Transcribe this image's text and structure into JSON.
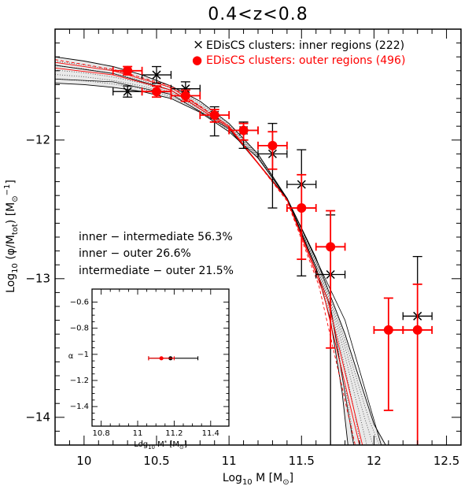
{
  "colors": {
    "inner": "#000000",
    "outer": "#ff0000",
    "band": "#000000"
  },
  "chart_data": [
    {
      "type": "scatter",
      "title": "0.4<z<0.8",
      "xlabel_main": "Log",
      "xlabel_sub": "10",
      "xlabel_rest": " M [M",
      "xlabel_sun": "⊙",
      "xlabel_end": "]",
      "ylabel_main": "Log",
      "ylabel_sub": "10",
      "ylabel_mid": " (φ/M",
      "ylabel_tot": "tot",
      "ylabel_rest": ") [M",
      "ylabel_sun": "⊙",
      "ylabel_sup": "−1",
      "ylabel_end": "]",
      "xlim": [
        9.8,
        12.6
      ],
      "ylim": [
        -14.2,
        -11.2
      ],
      "xticks": [
        10,
        10.5,
        11,
        11.5,
        12,
        12.5
      ],
      "xtick_labels": [
        "10",
        "10.5",
        "11",
        "11.5",
        "12",
        "12.5"
      ],
      "yticks": [
        -12,
        -13,
        -14
      ],
      "ytick_labels": [
        "−12",
        "−13",
        "−14"
      ],
      "legend": [
        {
          "marker": "×",
          "label": "EDisCS clusters: inner regions (222)",
          "color": "#000000"
        },
        {
          "marker": "●",
          "label": "EDisCS clusters: outer regions (496)",
          "color": "#ff0000"
        }
      ],
      "annotations": [
        "inner − intermediate 56.3%",
        "inner − outer 26.6%",
        "intermediate − outer 21.5%"
      ],
      "series": [
        {
          "name": "EDisCS clusters: inner regions (222)",
          "marker": "cross",
          "color": "#000000",
          "x": [
            10.3,
            10.5,
            10.7,
            10.9,
            11.1,
            11.3,
            11.5,
            11.7,
            12.3
          ],
          "y": [
            -11.65,
            -11.53,
            -11.63,
            -11.82,
            -11.93,
            -12.1,
            -12.32,
            -12.97,
            -13.27
          ],
          "xerr": [
            0.1,
            0.1,
            0.1,
            0.1,
            0.1,
            0.1,
            0.1,
            0.1,
            0.1
          ],
          "yerr_up": [
            0.04,
            0.06,
            0.05,
            0.06,
            0.06,
            0.22,
            0.25,
            0.43,
            0.43
          ],
          "yerr_low": [
            0.04,
            0.06,
            0.05,
            0.15,
            0.13,
            0.39,
            0.66,
            1.3,
            1.3
          ]
        },
        {
          "name": "EDisCS clusters: outer regions (496)",
          "marker": "circle",
          "color": "#ff0000",
          "x": [
            10.3,
            10.5,
            10.7,
            10.9,
            11.1,
            11.3,
            11.5,
            11.7,
            12.1,
            12.3
          ],
          "y": [
            -11.5,
            -11.65,
            -11.68,
            -11.82,
            -11.93,
            -12.04,
            -12.49,
            -12.77,
            -13.37,
            -13.37
          ],
          "xerr": [
            0.1,
            0.1,
            0.1,
            0.1,
            0.1,
            0.1,
            0.1,
            0.1,
            0.1,
            0.1
          ],
          "yerr_up": [
            0.03,
            0.04,
            0.04,
            0.04,
            0.05,
            0.1,
            0.24,
            0.26,
            0.23,
            0.33
          ],
          "yerr_low": [
            0.03,
            0.04,
            0.04,
            0.05,
            0.07,
            0.17,
            0.37,
            0.73,
            0.58,
            1.0
          ]
        }
      ],
      "fits": {
        "description": "Schechter function fits with uncertainty band",
        "band_lower": {
          "x": [
            9.8,
            10.0,
            10.2,
            10.4,
            10.6,
            10.8,
            11.0,
            11.2,
            11.4,
            11.6,
            11.8,
            12.0,
            12.08
          ],
          "y": [
            -11.59,
            -11.6,
            -11.62,
            -11.65,
            -11.7,
            -11.8,
            -11.94,
            -12.13,
            -12.42,
            -12.85,
            -13.4,
            -14.05,
            -14.2
          ]
        },
        "band_upper": {
          "x": [
            9.8,
            10.0,
            10.2,
            10.4,
            10.6,
            10.8,
            11.0,
            11.2,
            11.4,
            11.6,
            11.7,
            11.78,
            11.82
          ],
          "y": [
            -11.4,
            -11.43,
            -11.47,
            -11.53,
            -11.61,
            -11.72,
            -11.88,
            -12.1,
            -12.42,
            -12.92,
            -13.3,
            -13.82,
            -14.2
          ]
        },
        "black_lines": [
          {
            "x": [
              9.8,
              10.2,
              10.6,
              11.0,
              11.4,
              11.8,
              12.05
            ],
            "y": [
              -11.46,
              -11.52,
              -11.64,
              -11.91,
              -12.42,
              -13.3,
              -14.2
            ]
          },
          {
            "x": [
              9.8,
              10.2,
              10.6,
              11.0,
              11.4,
              11.7,
              11.86
            ],
            "y": [
              -11.56,
              -11.58,
              -11.67,
              -11.92,
              -12.42,
              -13.2,
              -14.2
            ]
          }
        ],
        "red_lines": [
          {
            "x": [
              9.8,
              10.2,
              10.6,
              11.0,
              11.4,
              11.65,
              11.9
            ],
            "y": [
              -11.44,
              -11.5,
              -11.62,
              -11.9,
              -12.43,
              -13.1,
              -14.2
            ]
          },
          {
            "x": [
              9.8,
              10.2,
              10.6,
              11.0,
              11.4,
              11.68,
              11.92
            ],
            "y": [
              -11.48,
              -11.53,
              -11.64,
              -11.91,
              -12.43,
              -13.15,
              -14.2
            ]
          },
          {
            "x": [
              9.8,
              10.2,
              10.6,
              11.0,
              11.4,
              11.62,
              11.87
            ],
            "y": [
              -11.42,
              -11.49,
              -11.61,
              -11.9,
              -12.44,
              -13.05,
              -14.2
            ]
          }
        ]
      }
    },
    {
      "type": "scatter",
      "name": "inset",
      "xlabel_main": "Log",
      "xlabel_sub": "10",
      "xlabel_rest": " M",
      "xlabel_sup": "*",
      "xlabel_bra": " [M",
      "xlabel_sun": "⊙",
      "xlabel_end": "]",
      "ylabel": "α",
      "xlim": [
        10.75,
        11.5
      ],
      "ylim": [
        -1.55,
        -0.5
      ],
      "xticks": [
        10.8,
        11.0,
        11.2,
        11.4
      ],
      "xtick_labels": [
        "10.8",
        "11",
        "11.2",
        "11.4"
      ],
      "yticks": [
        -0.6,
        -0.8,
        -1.0,
        -1.2,
        -1.4
      ],
      "ytick_labels": [
        "−0.6",
        "−0.8",
        "−1",
        "−1.2",
        "−1.4"
      ],
      "points": [
        {
          "name": "inner",
          "x": 11.18,
          "y": -1.03,
          "xerr_low": 0.12,
          "xerr_up": 0.15,
          "color": "#000000"
        },
        {
          "name": "outer",
          "x": 11.13,
          "y": -1.03,
          "xerr_low": 0.07,
          "xerr_up": 0.07,
          "color": "#ff0000"
        }
      ]
    }
  ]
}
